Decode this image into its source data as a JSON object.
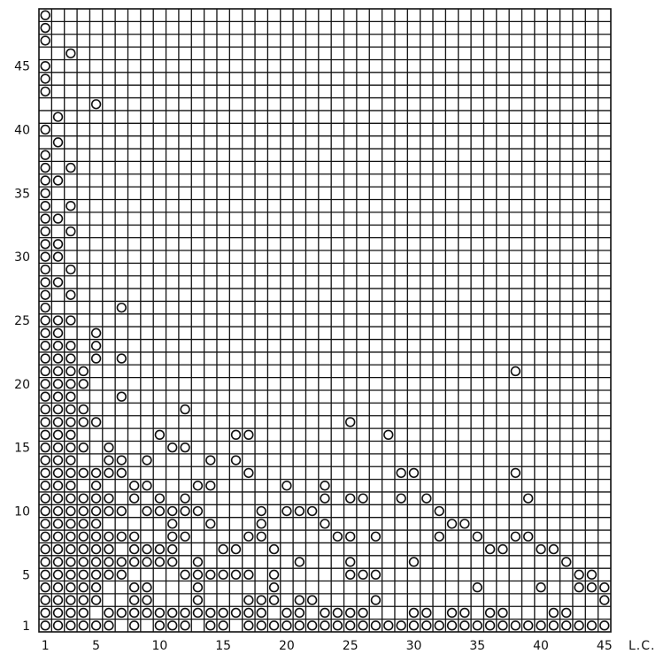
{
  "chart_data": {
    "type": "scatter",
    "xlabel": "L.C.",
    "ylabel": "",
    "title": "",
    "xlim": [
      1,
      45
    ],
    "ylim": [
      1,
      49
    ],
    "grid": true,
    "legend": "none",
    "x_ticks": [
      {
        "value": 1,
        "label": "1"
      },
      {
        "value": 5,
        "label": "5"
      },
      {
        "value": 10,
        "label": "10"
      },
      {
        "value": 15,
        "label": "15"
      },
      {
        "value": 20,
        "label": "20"
      },
      {
        "value": 25,
        "label": "25"
      },
      {
        "value": 30,
        "label": "30"
      },
      {
        "value": 35,
        "label": "35"
      },
      {
        "value": 40,
        "label": "40"
      },
      {
        "value": 45,
        "label": "45"
      }
    ],
    "y_ticks": [
      {
        "value": 1,
        "label": "1"
      },
      {
        "value": 5,
        "label": "5"
      },
      {
        "value": 10,
        "label": "10"
      },
      {
        "value": 15,
        "label": "15"
      },
      {
        "value": 20,
        "label": "20"
      },
      {
        "value": 25,
        "label": "25"
      },
      {
        "value": 30,
        "label": "30"
      },
      {
        "value": 35,
        "label": "35"
      },
      {
        "value": 40,
        "label": "40"
      },
      {
        "value": 45,
        "label": "45"
      }
    ],
    "points": [
      [
        1,
        49
      ],
      [
        1,
        48
      ],
      [
        1,
        47
      ],
      [
        1,
        45
      ],
      [
        1,
        44
      ],
      [
        1,
        43
      ],
      [
        1,
        40
      ],
      [
        1,
        38
      ],
      [
        1,
        37
      ],
      [
        1,
        36
      ],
      [
        1,
        35
      ],
      [
        1,
        34
      ],
      [
        1,
        33
      ],
      [
        1,
        32
      ],
      [
        1,
        31
      ],
      [
        1,
        30
      ],
      [
        1,
        29
      ],
      [
        1,
        28
      ],
      [
        1,
        27
      ],
      [
        1,
        26
      ],
      [
        1,
        25
      ],
      [
        1,
        24
      ],
      [
        1,
        23
      ],
      [
        1,
        22
      ],
      [
        1,
        21
      ],
      [
        1,
        20
      ],
      [
        1,
        19
      ],
      [
        1,
        18
      ],
      [
        1,
        17
      ],
      [
        1,
        16
      ],
      [
        1,
        15
      ],
      [
        1,
        14
      ],
      [
        1,
        13
      ],
      [
        1,
        12
      ],
      [
        1,
        11
      ],
      [
        1,
        10
      ],
      [
        1,
        9
      ],
      [
        1,
        8
      ],
      [
        1,
        7
      ],
      [
        1,
        6
      ],
      [
        1,
        5
      ],
      [
        1,
        4
      ],
      [
        1,
        3
      ],
      [
        1,
        2
      ],
      [
        1,
        1
      ],
      [
        2,
        41
      ],
      [
        2,
        39
      ],
      [
        2,
        36
      ],
      [
        2,
        33
      ],
      [
        2,
        31
      ],
      [
        2,
        30
      ],
      [
        2,
        28
      ],
      [
        2,
        25
      ],
      [
        2,
        24
      ],
      [
        2,
        23
      ],
      [
        2,
        22
      ],
      [
        2,
        21
      ],
      [
        2,
        20
      ],
      [
        2,
        19
      ],
      [
        2,
        18
      ],
      [
        2,
        17
      ],
      [
        2,
        16
      ],
      [
        2,
        15
      ],
      [
        2,
        14
      ],
      [
        2,
        13
      ],
      [
        2,
        12
      ],
      [
        2,
        11
      ],
      [
        2,
        10
      ],
      [
        2,
        9
      ],
      [
        2,
        8
      ],
      [
        2,
        7
      ],
      [
        2,
        6
      ],
      [
        2,
        5
      ],
      [
        2,
        4
      ],
      [
        2,
        3
      ],
      [
        2,
        2
      ],
      [
        2,
        1
      ],
      [
        3,
        46
      ],
      [
        3,
        37
      ],
      [
        3,
        34
      ],
      [
        3,
        32
      ],
      [
        3,
        29
      ],
      [
        3,
        27
      ],
      [
        3,
        25
      ],
      [
        3,
        23
      ],
      [
        3,
        22
      ],
      [
        3,
        21
      ],
      [
        3,
        20
      ],
      [
        3,
        19
      ],
      [
        3,
        18
      ],
      [
        3,
        17
      ],
      [
        3,
        16
      ],
      [
        3,
        15
      ],
      [
        3,
        14
      ],
      [
        3,
        13
      ],
      [
        3,
        12
      ],
      [
        3,
        11
      ],
      [
        3,
        10
      ],
      [
        3,
        9
      ],
      [
        3,
        8
      ],
      [
        3,
        7
      ],
      [
        3,
        6
      ],
      [
        3,
        5
      ],
      [
        3,
        4
      ],
      [
        3,
        3
      ],
      [
        3,
        2
      ],
      [
        3,
        1
      ],
      [
        4,
        21
      ],
      [
        4,
        20
      ],
      [
        4,
        18
      ],
      [
        4,
        17
      ],
      [
        4,
        15
      ],
      [
        4,
        13
      ],
      [
        4,
        11
      ],
      [
        4,
        10
      ],
      [
        4,
        9
      ],
      [
        4,
        8
      ],
      [
        4,
        7
      ],
      [
        4,
        6
      ],
      [
        4,
        5
      ],
      [
        4,
        4
      ],
      [
        4,
        3
      ],
      [
        4,
        2
      ],
      [
        4,
        1
      ],
      [
        5,
        42
      ],
      [
        5,
        24
      ],
      [
        5,
        23
      ],
      [
        5,
        22
      ],
      [
        5,
        17
      ],
      [
        5,
        13
      ],
      [
        5,
        12
      ],
      [
        5,
        11
      ],
      [
        5,
        10
      ],
      [
        5,
        9
      ],
      [
        5,
        8
      ],
      [
        5,
        7
      ],
      [
        5,
        6
      ],
      [
        5,
        5
      ],
      [
        5,
        4
      ],
      [
        5,
        3
      ],
      [
        5,
        1
      ],
      [
        6,
        15
      ],
      [
        6,
        14
      ],
      [
        6,
        13
      ],
      [
        6,
        11
      ],
      [
        6,
        10
      ],
      [
        6,
        8
      ],
      [
        6,
        7
      ],
      [
        6,
        6
      ],
      [
        6,
        5
      ],
      [
        6,
        2
      ],
      [
        6,
        1
      ],
      [
        7,
        26
      ],
      [
        7,
        22
      ],
      [
        7,
        19
      ],
      [
        7,
        14
      ],
      [
        7,
        13
      ],
      [
        7,
        10
      ],
      [
        7,
        8
      ],
      [
        7,
        6
      ],
      [
        7,
        5
      ],
      [
        7,
        2
      ],
      [
        8,
        12
      ],
      [
        8,
        11
      ],
      [
        8,
        8
      ],
      [
        8,
        7
      ],
      [
        8,
        6
      ],
      [
        8,
        4
      ],
      [
        8,
        3
      ],
      [
        8,
        2
      ],
      [
        8,
        1
      ],
      [
        9,
        14
      ],
      [
        9,
        12
      ],
      [
        9,
        10
      ],
      [
        9,
        7
      ],
      [
        9,
        6
      ],
      [
        9,
        4
      ],
      [
        9,
        3
      ],
      [
        9,
        2
      ],
      [
        10,
        16
      ],
      [
        10,
        11
      ],
      [
        10,
        10
      ],
      [
        10,
        7
      ],
      [
        10,
        6
      ],
      [
        10,
        2
      ],
      [
        10,
        1
      ],
      [
        11,
        15
      ],
      [
        11,
        10
      ],
      [
        11,
        9
      ],
      [
        11,
        8
      ],
      [
        11,
        7
      ],
      [
        11,
        6
      ],
      [
        11,
        2
      ],
      [
        11,
        1
      ],
      [
        12,
        18
      ],
      [
        12,
        15
      ],
      [
        12,
        11
      ],
      [
        12,
        10
      ],
      [
        12,
        8
      ],
      [
        12,
        5
      ],
      [
        12,
        2
      ],
      [
        12,
        1
      ],
      [
        13,
        12
      ],
      [
        13,
        10
      ],
      [
        13,
        6
      ],
      [
        13,
        5
      ],
      [
        13,
        4
      ],
      [
        13,
        3
      ],
      [
        13,
        2
      ],
      [
        14,
        14
      ],
      [
        14,
        12
      ],
      [
        14,
        9
      ],
      [
        14,
        5
      ],
      [
        14,
        2
      ],
      [
        14,
        1
      ],
      [
        15,
        7
      ],
      [
        15,
        5
      ],
      [
        15,
        2
      ],
      [
        15,
        1
      ],
      [
        16,
        16
      ],
      [
        16,
        14
      ],
      [
        16,
        7
      ],
      [
        16,
        5
      ],
      [
        16,
        2
      ],
      [
        17,
        16
      ],
      [
        17,
        13
      ],
      [
        17,
        8
      ],
      [
        17,
        5
      ],
      [
        17,
        3
      ],
      [
        17,
        2
      ],
      [
        17,
        1
      ],
      [
        18,
        10
      ],
      [
        18,
        9
      ],
      [
        18,
        8
      ],
      [
        18,
        3
      ],
      [
        18,
        2
      ],
      [
        18,
        1
      ],
      [
        19,
        7
      ],
      [
        19,
        5
      ],
      [
        19,
        4
      ],
      [
        19,
        3
      ],
      [
        19,
        1
      ],
      [
        20,
        12
      ],
      [
        20,
        10
      ],
      [
        20,
        2
      ],
      [
        20,
        1
      ],
      [
        21,
        10
      ],
      [
        21,
        6
      ],
      [
        21,
        3
      ],
      [
        21,
        2
      ],
      [
        21,
        1
      ],
      [
        22,
        10
      ],
      [
        22,
        3
      ],
      [
        22,
        1
      ],
      [
        23,
        12
      ],
      [
        23,
        11
      ],
      [
        23,
        9
      ],
      [
        23,
        2
      ],
      [
        23,
        1
      ],
      [
        24,
        8
      ],
      [
        24,
        2
      ],
      [
        24,
        1
      ],
      [
        25,
        17
      ],
      [
        25,
        11
      ],
      [
        25,
        8
      ],
      [
        25,
        6
      ],
      [
        25,
        5
      ],
      [
        25,
        2
      ],
      [
        25,
        1
      ],
      [
        26,
        11
      ],
      [
        26,
        5
      ],
      [
        26,
        2
      ],
      [
        26,
        1
      ],
      [
        27,
        8
      ],
      [
        27,
        5
      ],
      [
        27,
        3
      ],
      [
        27,
        1
      ],
      [
        28,
        16
      ],
      [
        28,
        1
      ],
      [
        29,
        13
      ],
      [
        29,
        11
      ],
      [
        29,
        1
      ],
      [
        30,
        13
      ],
      [
        30,
        6
      ],
      [
        30,
        2
      ],
      [
        30,
        1
      ],
      [
        31,
        11
      ],
      [
        31,
        2
      ],
      [
        31,
        1
      ],
      [
        32,
        10
      ],
      [
        32,
        8
      ],
      [
        32,
        1
      ],
      [
        33,
        9
      ],
      [
        33,
        2
      ],
      [
        33,
        1
      ],
      [
        34,
        9
      ],
      [
        34,
        2
      ],
      [
        34,
        1
      ],
      [
        35,
        8
      ],
      [
        35,
        4
      ],
      [
        35,
        1
      ],
      [
        36,
        7
      ],
      [
        36,
        2
      ],
      [
        36,
        1
      ],
      [
        37,
        7
      ],
      [
        37,
        2
      ],
      [
        37,
        1
      ],
      [
        38,
        21
      ],
      [
        38,
        13
      ],
      [
        38,
        8
      ],
      [
        38,
        1
      ],
      [
        39,
        11
      ],
      [
        39,
        8
      ],
      [
        39,
        1
      ],
      [
        40,
        7
      ],
      [
        40,
        4
      ],
      [
        40,
        1
      ],
      [
        41,
        7
      ],
      [
        41,
        2
      ],
      [
        41,
        1
      ],
      [
        42,
        6
      ],
      [
        42,
        2
      ],
      [
        42,
        1
      ],
      [
        43,
        5
      ],
      [
        43,
        4
      ],
      [
        43,
        1
      ],
      [
        44,
        5
      ],
      [
        44,
        4
      ],
      [
        44,
        1
      ],
      [
        45,
        4
      ],
      [
        45,
        3
      ],
      [
        45,
        1
      ]
    ]
  }
}
